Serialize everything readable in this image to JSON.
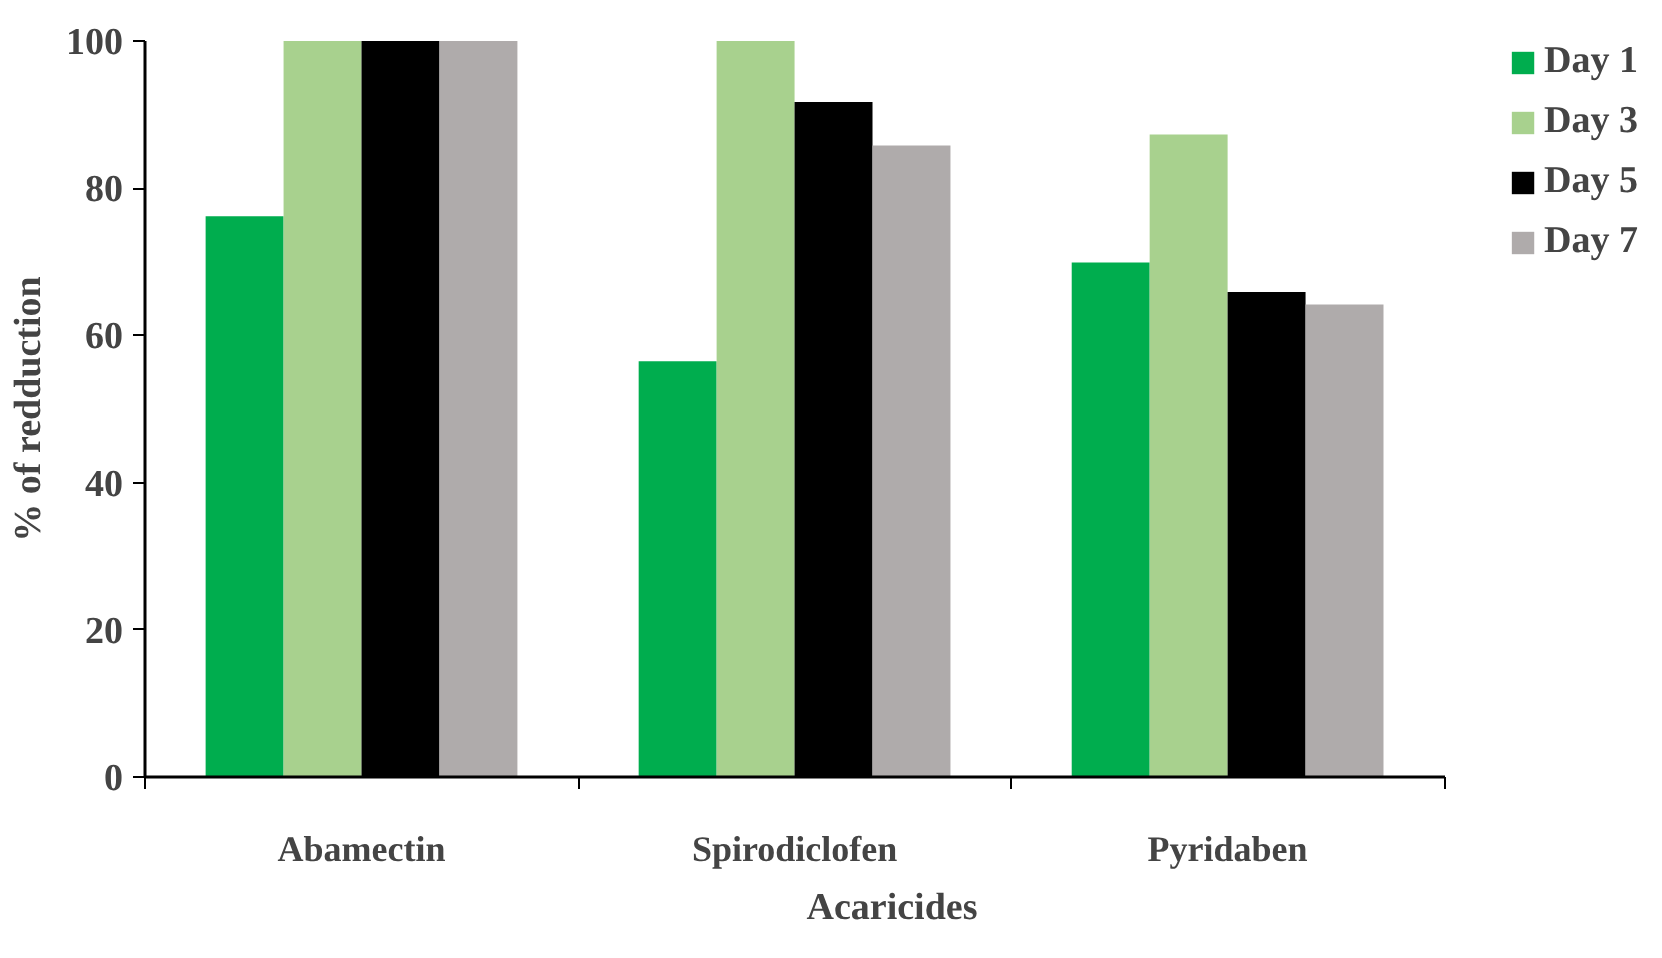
{
  "chart_data": {
    "type": "bar",
    "xlabel": "Acaricides",
    "ylabel": "% of redduction",
    "categories": [
      "Abamectin",
      "Spirodiclofen",
      "Pyridaben"
    ],
    "series": [
      {
        "name": "Day 1",
        "color": "#00ad4e",
        "values": [
          76.2,
          56.5,
          69.9
        ]
      },
      {
        "name": "Day 3",
        "color": "#a8d18e",
        "values": [
          100,
          100,
          87.3
        ]
      },
      {
        "name": "Day 5",
        "color": "#000000",
        "values": [
          100,
          91.7,
          65.9
        ]
      },
      {
        "name": "Day 7",
        "color": "#afabab",
        "values": [
          100,
          85.8,
          64.2
        ]
      }
    ],
    "ylim": [
      0,
      100
    ],
    "yticks": [
      0,
      20,
      40,
      60,
      80,
      100
    ],
    "grid": false,
    "legend": "right"
  }
}
